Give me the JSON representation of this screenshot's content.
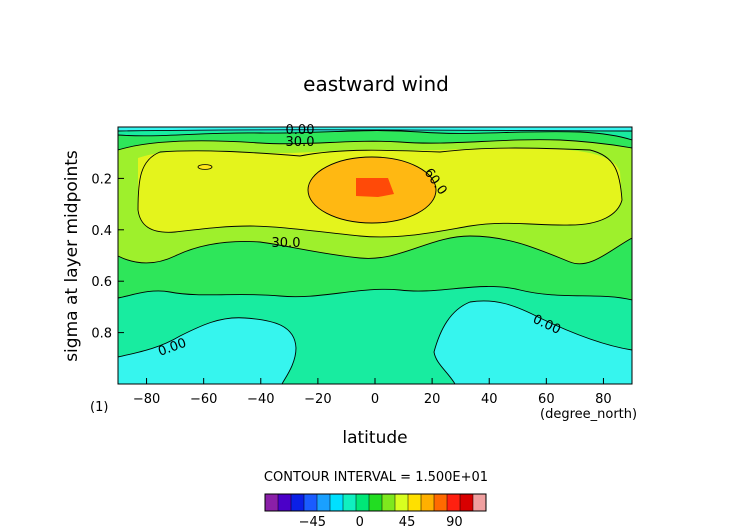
{
  "chart_data": {
    "type": "heatmap",
    "title": "eastward wind",
    "xlabel": "latitude",
    "ylabel": "sigma at layer midpoints",
    "x_unit_label": "(degree_north)",
    "panel_label": "(1)",
    "xlim": [
      -90,
      90
    ],
    "ylim": [
      1.0,
      0.0
    ],
    "x_ticks": [
      "-80",
      "-60",
      "-40",
      "-20",
      "0",
      "20",
      "40",
      "60",
      "80"
    ],
    "y_ticks": [
      "0.2",
      "0.4",
      "0.6",
      "0.8"
    ],
    "contour_labels": [
      "0.00",
      "30.0",
      "60.0",
      "30.0",
      "0.00",
      "0.00"
    ],
    "contour_interval_text": "CONTOUR INTERVAL = 1.500E+01",
    "colorbar": {
      "ticks": [
        "-45",
        "0",
        "45",
        "90"
      ],
      "levels": [
        -75,
        -60,
        -45,
        -30,
        -15,
        0,
        15,
        30,
        45,
        60,
        75,
        90,
        105
      ],
      "colors": [
        "#8a1fa8",
        "#4b00c8",
        "#0a1fe6",
        "#1a5cff",
        "#1aa0ff",
        "#00e0ff",
        "#10f0c0",
        "#00e878",
        "#22dd22",
        "#7ee81e",
        "#d8ff20",
        "#ffe000",
        "#ffb000",
        "#ff6a00",
        "#ff2010",
        "#d80000",
        "#f0a0a0"
      ]
    },
    "bands": [
      {
        "range": "below 0",
        "color": "#36f5ee"
      },
      {
        "range": "0 to 15",
        "color": "#18eca0"
      },
      {
        "range": "15 to 30",
        "color": "#2ee65a"
      },
      {
        "range": "30 to 45",
        "color": "#9ef02c"
      },
      {
        "range": "45 to 60",
        "color": "#e4f41c"
      },
      {
        "range": "60 to 75",
        "color": "#ffb812"
      },
      {
        "range": "75 to 90",
        "color": "#ff4a08"
      }
    ]
  }
}
